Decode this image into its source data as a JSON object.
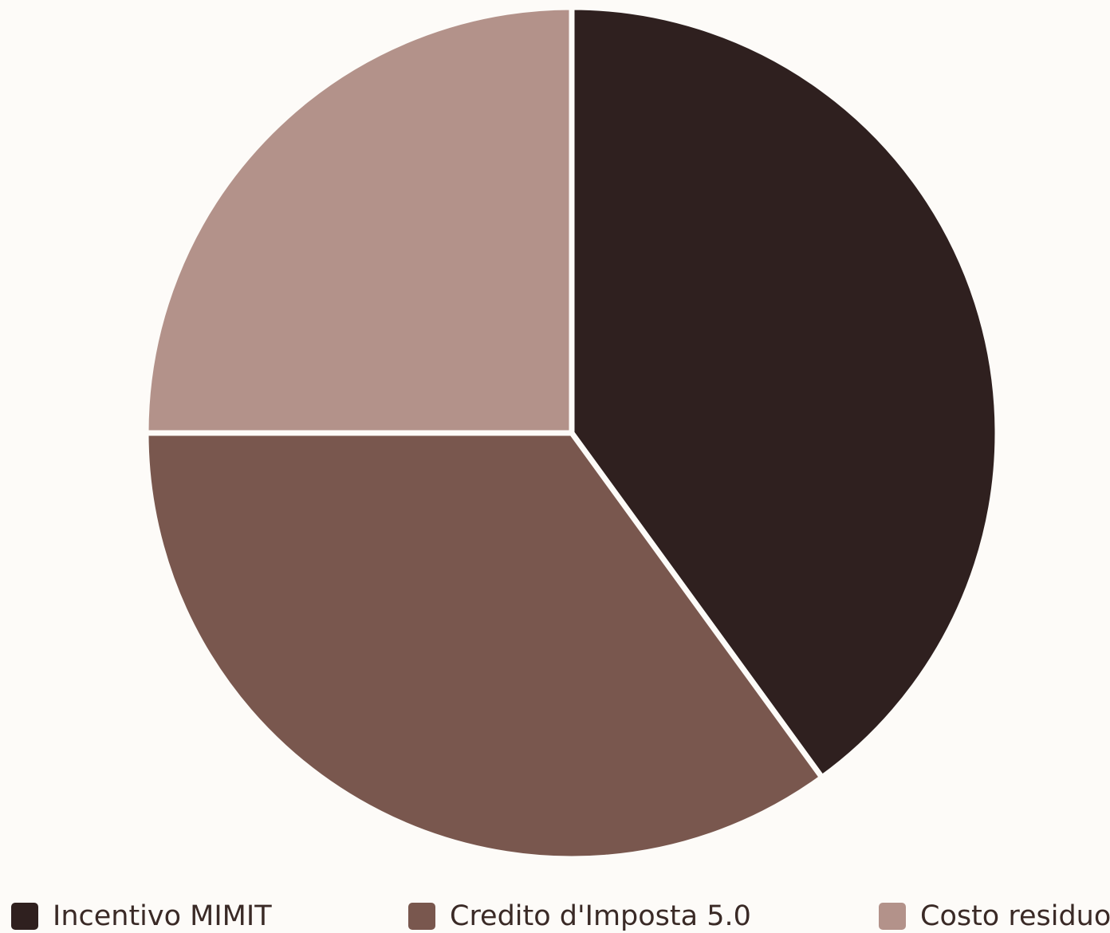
{
  "chart_data": {
    "type": "pie",
    "categories": [
      "Incentivo MIMIT",
      "Credito d'Imposta 5.0",
      "Costo residuo"
    ],
    "values": [
      40,
      35,
      25
    ],
    "colors": [
      "#2f201f",
      "#79574e",
      "#b3928a"
    ],
    "background": "#fdfbf8",
    "title": "",
    "legend": "bottom",
    "start_angle": "12 o'clock, clockwise"
  }
}
